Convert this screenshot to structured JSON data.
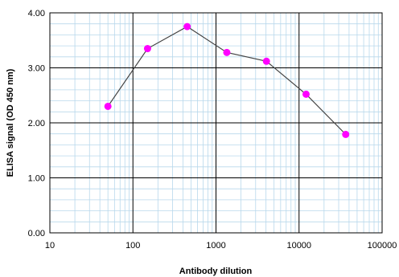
{
  "chart_data": {
    "type": "scatter",
    "title": "",
    "xlabel": "Antibody dilution",
    "ylabel": "ELISA signal (OD 450 nm)",
    "x_scale": "log",
    "xlim": [
      10,
      100000
    ],
    "ylim": [
      0,
      4
    ],
    "x_ticks": [
      10,
      100,
      1000,
      10000,
      100000
    ],
    "x_tick_labels": [
      "10",
      "100",
      "1000",
      "10000",
      "100000"
    ],
    "y_ticks": [
      0,
      1,
      2,
      3,
      4
    ],
    "y_tick_labels": [
      "0.00",
      "1.00",
      "2.00",
      "3.00",
      "4.00"
    ],
    "grid": true,
    "series": [
      {
        "x": [
          50,
          150,
          450,
          1350,
          4050,
          12150,
          36450
        ],
        "y": [
          2.3,
          3.35,
          3.75,
          3.28,
          3.12,
          2.52,
          1.79
        ],
        "line_color": "#444444",
        "marker_color": "#ff00ff"
      }
    ]
  },
  "colors": {
    "minor_grid": "#b8d8ec",
    "major_grid": "#000000"
  }
}
